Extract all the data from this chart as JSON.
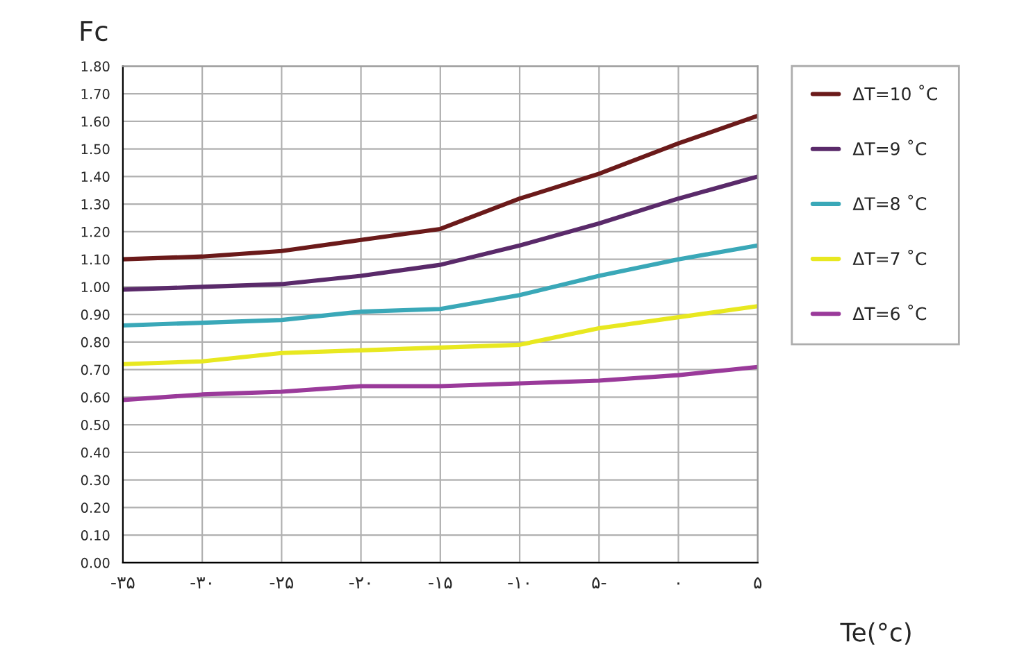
{
  "chart_data": {
    "type": "line",
    "ylabel": "Fc",
    "xlabel": "Te(°c)",
    "x": [
      -35,
      -30,
      -25,
      -20,
      -15,
      -10,
      -5,
      0,
      5
    ],
    "series": [
      {
        "name": "ΔT=10 ˚C",
        "color": "#6b1a1a",
        "values": [
          1.1,
          1.11,
          1.13,
          1.17,
          1.21,
          1.32,
          1.41,
          1.52,
          1.62
        ]
      },
      {
        "name": "ΔT=9 ˚C",
        "color": "#5a2a6a",
        "values": [
          0.99,
          1.0,
          1.01,
          1.04,
          1.08,
          1.15,
          1.23,
          1.32,
          1.4
        ]
      },
      {
        "name": "ΔT=8 ˚C",
        "color": "#3aa8b8",
        "values": [
          0.86,
          0.87,
          0.88,
          0.91,
          0.92,
          0.97,
          1.04,
          1.1,
          1.15
        ]
      },
      {
        "name": "ΔT=7 ˚C",
        "color": "#e8e820",
        "values": [
          0.72,
          0.73,
          0.76,
          0.77,
          0.78,
          0.79,
          0.85,
          0.89,
          0.93
        ]
      },
      {
        "name": "ΔT=6 ˚C",
        "color": "#9a3a9a",
        "values": [
          0.59,
          0.61,
          0.62,
          0.64,
          0.64,
          0.65,
          0.66,
          0.68,
          0.71
        ]
      }
    ],
    "xlim": [
      -35,
      5
    ],
    "xticks": [
      {
        "value": -35,
        "label": "-۳۵"
      },
      {
        "value": -30,
        "label": "-۳۰"
      },
      {
        "value": -25,
        "label": "-۲۵"
      },
      {
        "value": -20,
        "label": "-۲۰"
      },
      {
        "value": -15,
        "label": "-۱۵"
      },
      {
        "value": -10,
        "label": "-۱۰"
      },
      {
        "value": -5,
        "label": "۵-"
      },
      {
        "value": 0,
        "label": "۰"
      },
      {
        "value": 5,
        "label": "۵"
      }
    ],
    "ylim": [
      0,
      1.8
    ],
    "yticks": [
      {
        "value": 0,
        "label": "0.00"
      },
      {
        "value": 0.1,
        "label": "0.10"
      },
      {
        "value": 0.2,
        "label": "0.20"
      },
      {
        "value": 0.3,
        "label": "0.30"
      },
      {
        "value": 0.4,
        "label": "0.40"
      },
      {
        "value": 0.5,
        "label": "0.50"
      },
      {
        "value": 0.6,
        "label": "0.60"
      },
      {
        "value": 0.7,
        "label": "0.70"
      },
      {
        "value": 0.8,
        "label": "0.80"
      },
      {
        "value": 0.9,
        "label": "0.90"
      },
      {
        "value": 1.0,
        "label": "1.00"
      },
      {
        "value": 1.1,
        "label": "1.10"
      },
      {
        "value": 1.2,
        "label": "1.20"
      },
      {
        "value": 1.3,
        "label": "1.30"
      },
      {
        "value": 1.4,
        "label": "1.40"
      },
      {
        "value": 1.5,
        "label": "1.50"
      },
      {
        "value": 1.6,
        "label": "1.60"
      },
      {
        "value": 1.7,
        "label": "1.70"
      },
      {
        "value": 1.8,
        "label": "1.80"
      }
    ],
    "grid": true,
    "legend": "right",
    "marker": "none",
    "line_style": "solid"
  }
}
